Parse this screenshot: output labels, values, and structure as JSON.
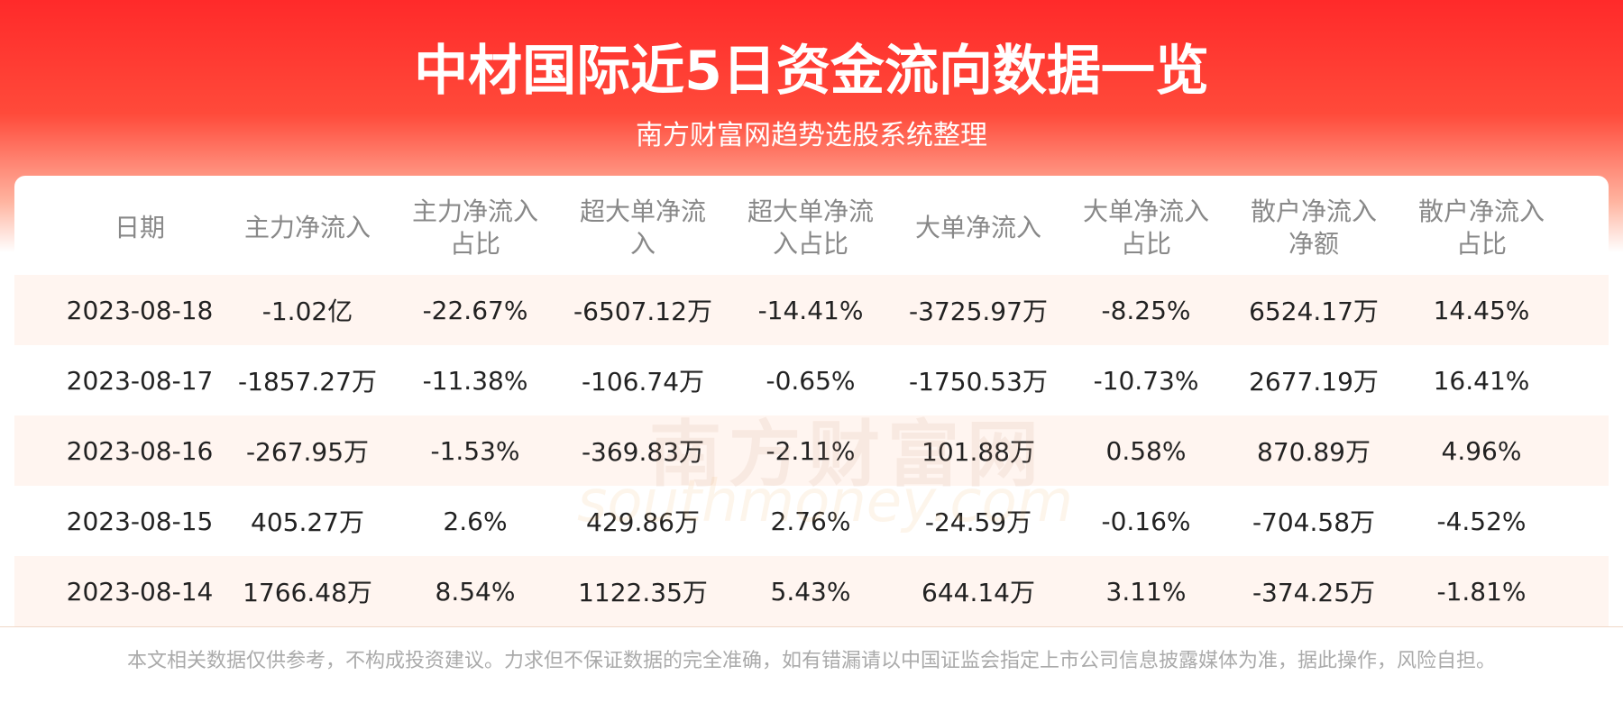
{
  "header": {
    "title": "中材国际近5日资金流向数据一览",
    "subtitle": "南方财富网趋势选股系统整理"
  },
  "watermark": {
    "name": "南方财富网",
    "site": "southmoney.com"
  },
  "table": {
    "columns": [
      "日期",
      "主力净流入",
      "主力净流入占比",
      "超大单净流入",
      "超大单净流入占比",
      "大单净流入",
      "大单净流入占比",
      "散户净流入净额",
      "散户净流入占比"
    ],
    "rows": [
      [
        "2023-08-18",
        "-1.02亿",
        "-22.67%",
        "-6507.12万",
        "-14.41%",
        "-3725.97万",
        "-8.25%",
        "6524.17万",
        "14.45%"
      ],
      [
        "2023-08-17",
        "-1857.27万",
        "-11.38%",
        "-106.74万",
        "-0.65%",
        "-1750.53万",
        "-10.73%",
        "2677.19万",
        "16.41%"
      ],
      [
        "2023-08-16",
        "-267.95万",
        "-1.53%",
        "-369.83万",
        "-2.11%",
        "101.88万",
        "0.58%",
        "870.89万",
        "4.96%"
      ],
      [
        "2023-08-15",
        "405.27万",
        "2.6%",
        "429.86万",
        "2.76%",
        "-24.59万",
        "-0.16%",
        "-704.58万",
        "-4.52%"
      ],
      [
        "2023-08-14",
        "1766.48万",
        "8.54%",
        "1122.35万",
        "5.43%",
        "644.14万",
        "3.11%",
        "-374.25万",
        "-1.81%"
      ]
    ]
  },
  "footer": {
    "disclaimer": "本文相关数据仅供参考，不构成投资建议。力求但不保证数据的完全准确，如有错漏请以中国证监会指定上市公司信息披露媒体为准，据此操作，风险自担。"
  }
}
